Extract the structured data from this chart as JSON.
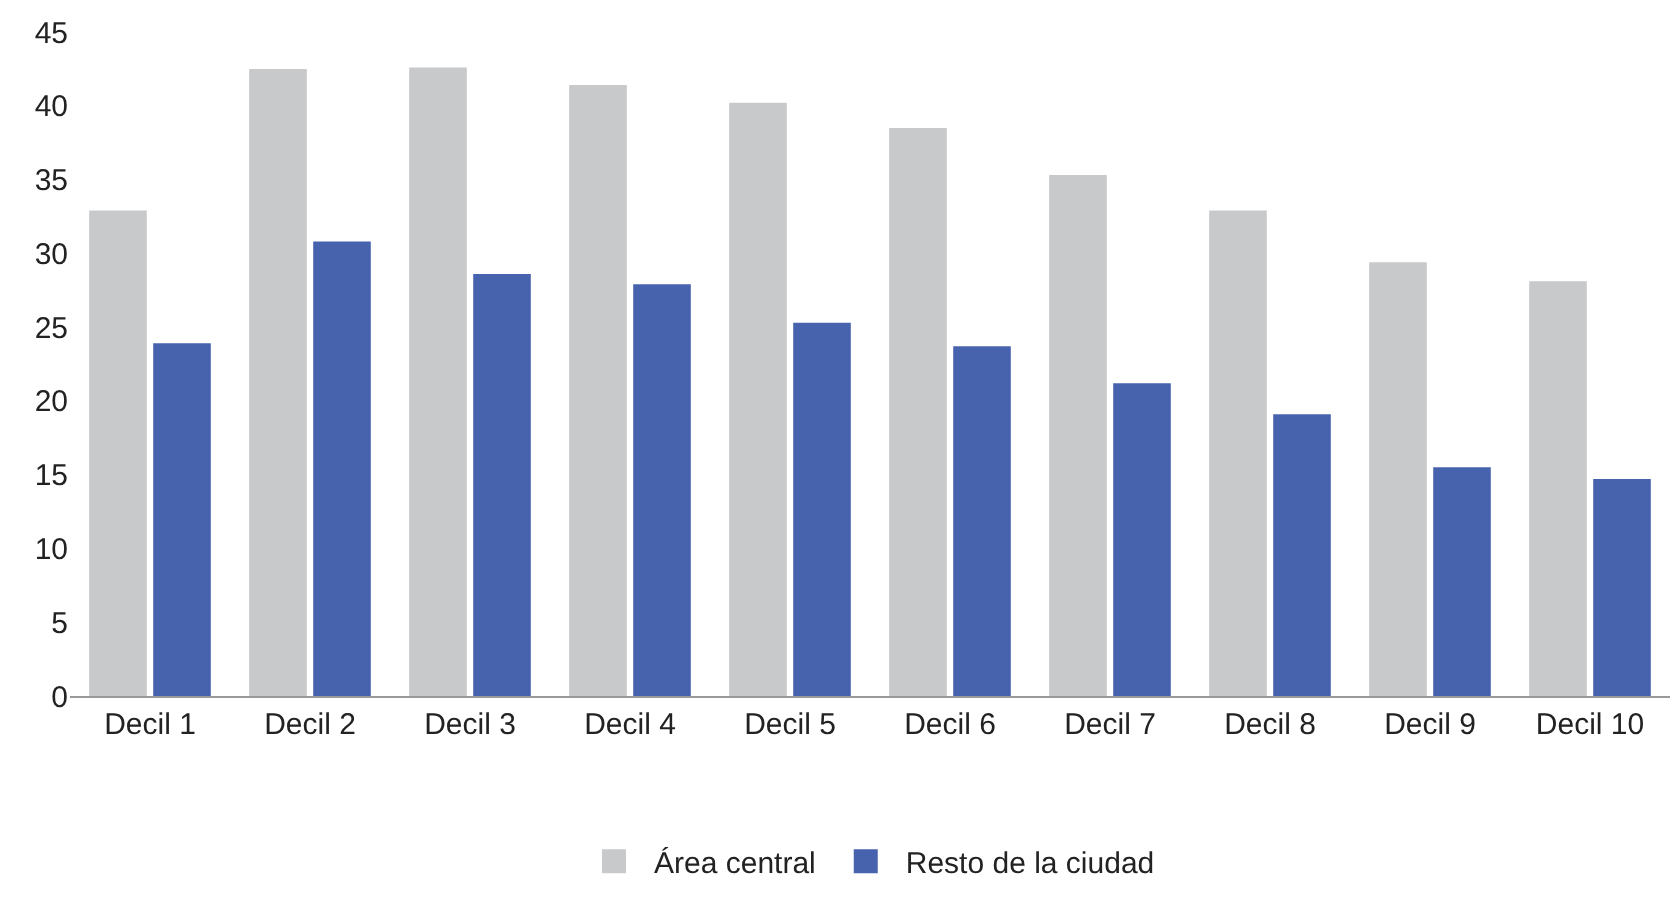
{
  "chart_data": {
    "type": "bar",
    "categories": [
      "Decil 1",
      "Decil 2",
      "Decil 3",
      "Decil 4",
      "Decil 5",
      "Decil 6",
      "Decil 7",
      "Decil 8",
      "Decil 9",
      "Decil 10"
    ],
    "series": [
      {
        "name": "Área central",
        "color": "#c8c9cb",
        "values": [
          32.9,
          42.5,
          42.6,
          41.4,
          40.2,
          38.5,
          35.3,
          32.9,
          29.4,
          28.1
        ]
      },
      {
        "name": "Resto de la ciudad",
        "color": "#4763ae",
        "values": [
          23.9,
          30.8,
          28.6,
          27.9,
          25.3,
          23.7,
          21.2,
          19.1,
          15.5,
          14.7
        ]
      }
    ],
    "ylim": [
      0,
      45
    ],
    "yticks": [
      0,
      5,
      10,
      15,
      20,
      25,
      30,
      35,
      40,
      45
    ],
    "legend": "bottom"
  }
}
